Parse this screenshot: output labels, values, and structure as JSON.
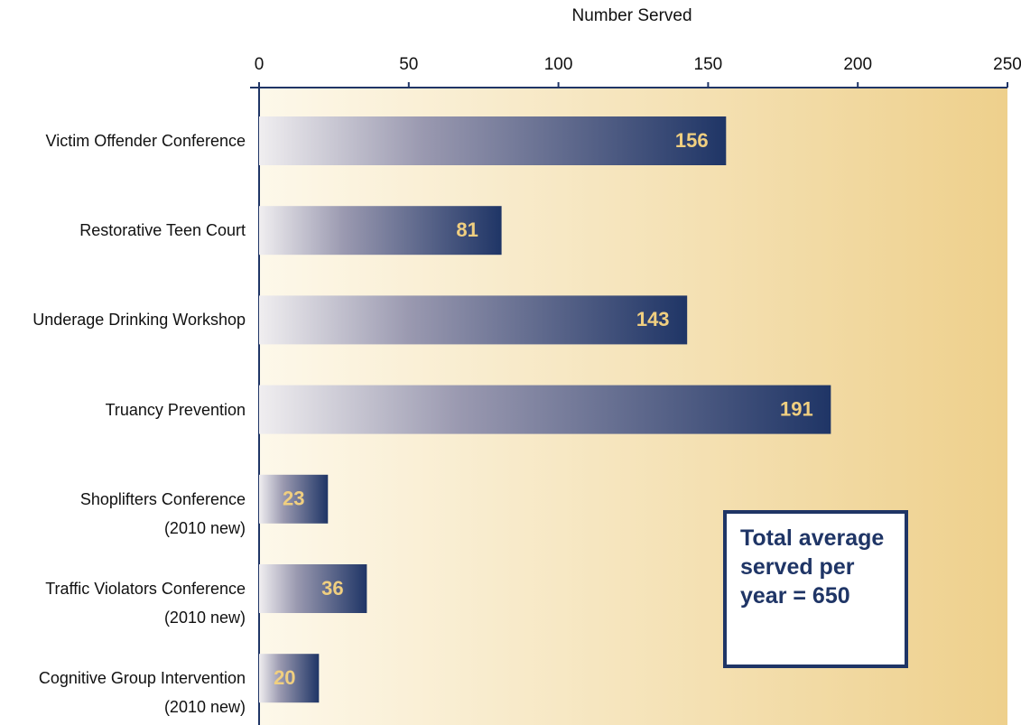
{
  "chart_data": {
    "type": "hbar",
    "x_label": "Number Served",
    "categories": [
      "Victim Offender Conference",
      "Restorative Teen Court",
      "Underage Drinking Workshop",
      "Truancy Prevention",
      "Shoplifters Conference\n(2010 new)",
      "Traffic Violators Conference\n(2010 new)",
      "Cognitive Group Intervention\n(2010 new)"
    ],
    "values": [
      156,
      81,
      143,
      191,
      23,
      36,
      20
    ],
    "color": "#1f3566",
    "xlim": [
      0,
      250
    ],
    "xticks": [
      0,
      50,
      100,
      150,
      200,
      250
    ],
    "annotation": "Total average served per year = 650"
  }
}
